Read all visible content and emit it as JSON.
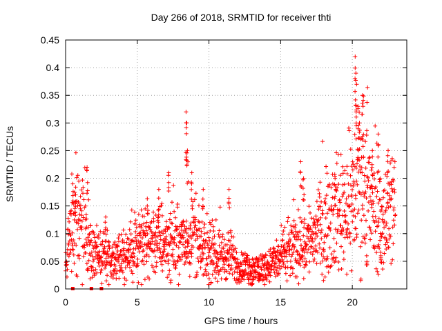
{
  "chart_data": {
    "type": "scatter",
    "title": "Day 266 of 2018, SRMTID for receiver thti",
    "xlabel": "GPS time / hours",
    "ylabel": "SRMTID / TECUs",
    "xlim": [
      0,
      23.8
    ],
    "ylim": [
      0,
      0.45
    ],
    "x_ticks": [
      0,
      5,
      10,
      15,
      20
    ],
    "x_tick_labels": [
      "0",
      "5",
      "10",
      "15",
      "20"
    ],
    "y_ticks": [
      0,
      0.05,
      0.1,
      0.15,
      0.2,
      0.25,
      0.3,
      0.35,
      0.4,
      0.45
    ],
    "y_tick_labels": [
      "0",
      "0.05",
      "0.1",
      "0.15",
      "0.2",
      "0.25",
      "0.3",
      "0.35",
      "0.4",
      "0.45"
    ],
    "grid": true,
    "series": [
      {
        "name": "SRMTID",
        "color": "#ff0000",
        "marker": "plus",
        "x_range": [
          0,
          23
        ],
        "baseline": [
          [
            0,
            0.05
          ],
          [
            0.3,
            0.1
          ],
          [
            0.6,
            0.14
          ],
          [
            1.0,
            0.12
          ],
          [
            1.5,
            0.09
          ],
          [
            2.0,
            0.06
          ],
          [
            3.0,
            0.055
          ],
          [
            4.0,
            0.06
          ],
          [
            5.0,
            0.075
          ],
          [
            6.0,
            0.09
          ],
          [
            7.0,
            0.085
          ],
          [
            8.0,
            0.08
          ],
          [
            9.0,
            0.1
          ],
          [
            9.5,
            0.065
          ],
          [
            10.5,
            0.06
          ],
          [
            11.5,
            0.06
          ],
          [
            12.0,
            0.04
          ],
          [
            13.0,
            0.035
          ],
          [
            14.0,
            0.04
          ],
          [
            15.0,
            0.055
          ],
          [
            16.0,
            0.075
          ],
          [
            17.0,
            0.09
          ],
          [
            18.0,
            0.11
          ],
          [
            19.0,
            0.14
          ],
          [
            20.0,
            0.16
          ],
          [
            20.5,
            0.2
          ],
          [
            21.0,
            0.17
          ],
          [
            21.5,
            0.14
          ],
          [
            22.0,
            0.12
          ],
          [
            22.5,
            0.14
          ],
          [
            23.0,
            0.16
          ]
        ],
        "spikes": [
          [
            0.5,
            0.19
          ],
          [
            0.7,
            0.17
          ],
          [
            1.5,
            0.22
          ],
          [
            2.8,
            0.13
          ],
          [
            5.7,
            0.15
          ],
          [
            7.2,
            0.21
          ],
          [
            8.4,
            0.32
          ],
          [
            8.45,
            0.3
          ],
          [
            8.5,
            0.25
          ],
          [
            8.8,
            0.21
          ],
          [
            9.6,
            0.18
          ],
          [
            11.4,
            0.18
          ],
          [
            16.4,
            0.23
          ],
          [
            16.6,
            0.2
          ],
          [
            18.8,
            0.2
          ],
          [
            20.2,
            0.42
          ],
          [
            20.25,
            0.39
          ],
          [
            20.3,
            0.37
          ],
          [
            20.4,
            0.33
          ],
          [
            20.5,
            0.3
          ],
          [
            20.7,
            0.35
          ],
          [
            20.75,
            0.33
          ],
          [
            21.4,
            0.25
          ],
          [
            21.8,
            0.28
          ],
          [
            22.5,
            0.25
          ]
        ],
        "extremes": [
          [
            6.5,
            0.18
          ],
          [
            13.0,
            0.01
          ],
          [
            13.5,
            0.02
          ],
          [
            21.0,
            0.06
          ],
          [
            22.0,
            0.06
          ]
        ]
      }
    ],
    "gap_markers_x": [
      0.5,
      1.8,
      2.5
    ]
  }
}
